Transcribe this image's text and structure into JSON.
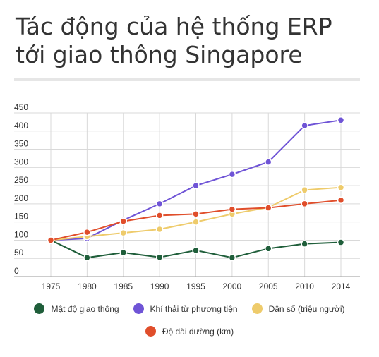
{
  "title": "Tác động của hệ thống ERP tới giao thông Singapore",
  "chart_data": {
    "type": "line",
    "categories": [
      "1975",
      "1980",
      "1985",
      "1990",
      "1995",
      "2000",
      "2005",
      "2010",
      "2014"
    ],
    "ylim": [
      0,
      450
    ],
    "yticks": [
      0,
      50,
      100,
      150,
      200,
      250,
      300,
      350,
      400,
      450
    ],
    "grid": true,
    "legend_position": "bottom",
    "series": [
      {
        "name": "Mật độ giao thông",
        "color": "#1f5e3a",
        "values": [
          100,
          52,
          66,
          53,
          72,
          52,
          77,
          90,
          94
        ]
      },
      {
        "name": "Khí thải từ phương tiện",
        "color": "#6f54d6",
        "values": [
          100,
          105,
          155,
          200,
          250,
          281,
          315,
          415,
          430
        ]
      },
      {
        "name": "Dân số (triệu người)",
        "color": "#eecb6b",
        "values": [
          100,
          110,
          120,
          130,
          150,
          172,
          190,
          238,
          245
        ]
      },
      {
        "name": "Độ dài đường (km)",
        "color": "#e04e2b",
        "values": [
          100,
          122,
          152,
          168,
          172,
          185,
          189,
          200,
          210
        ]
      }
    ]
  }
}
